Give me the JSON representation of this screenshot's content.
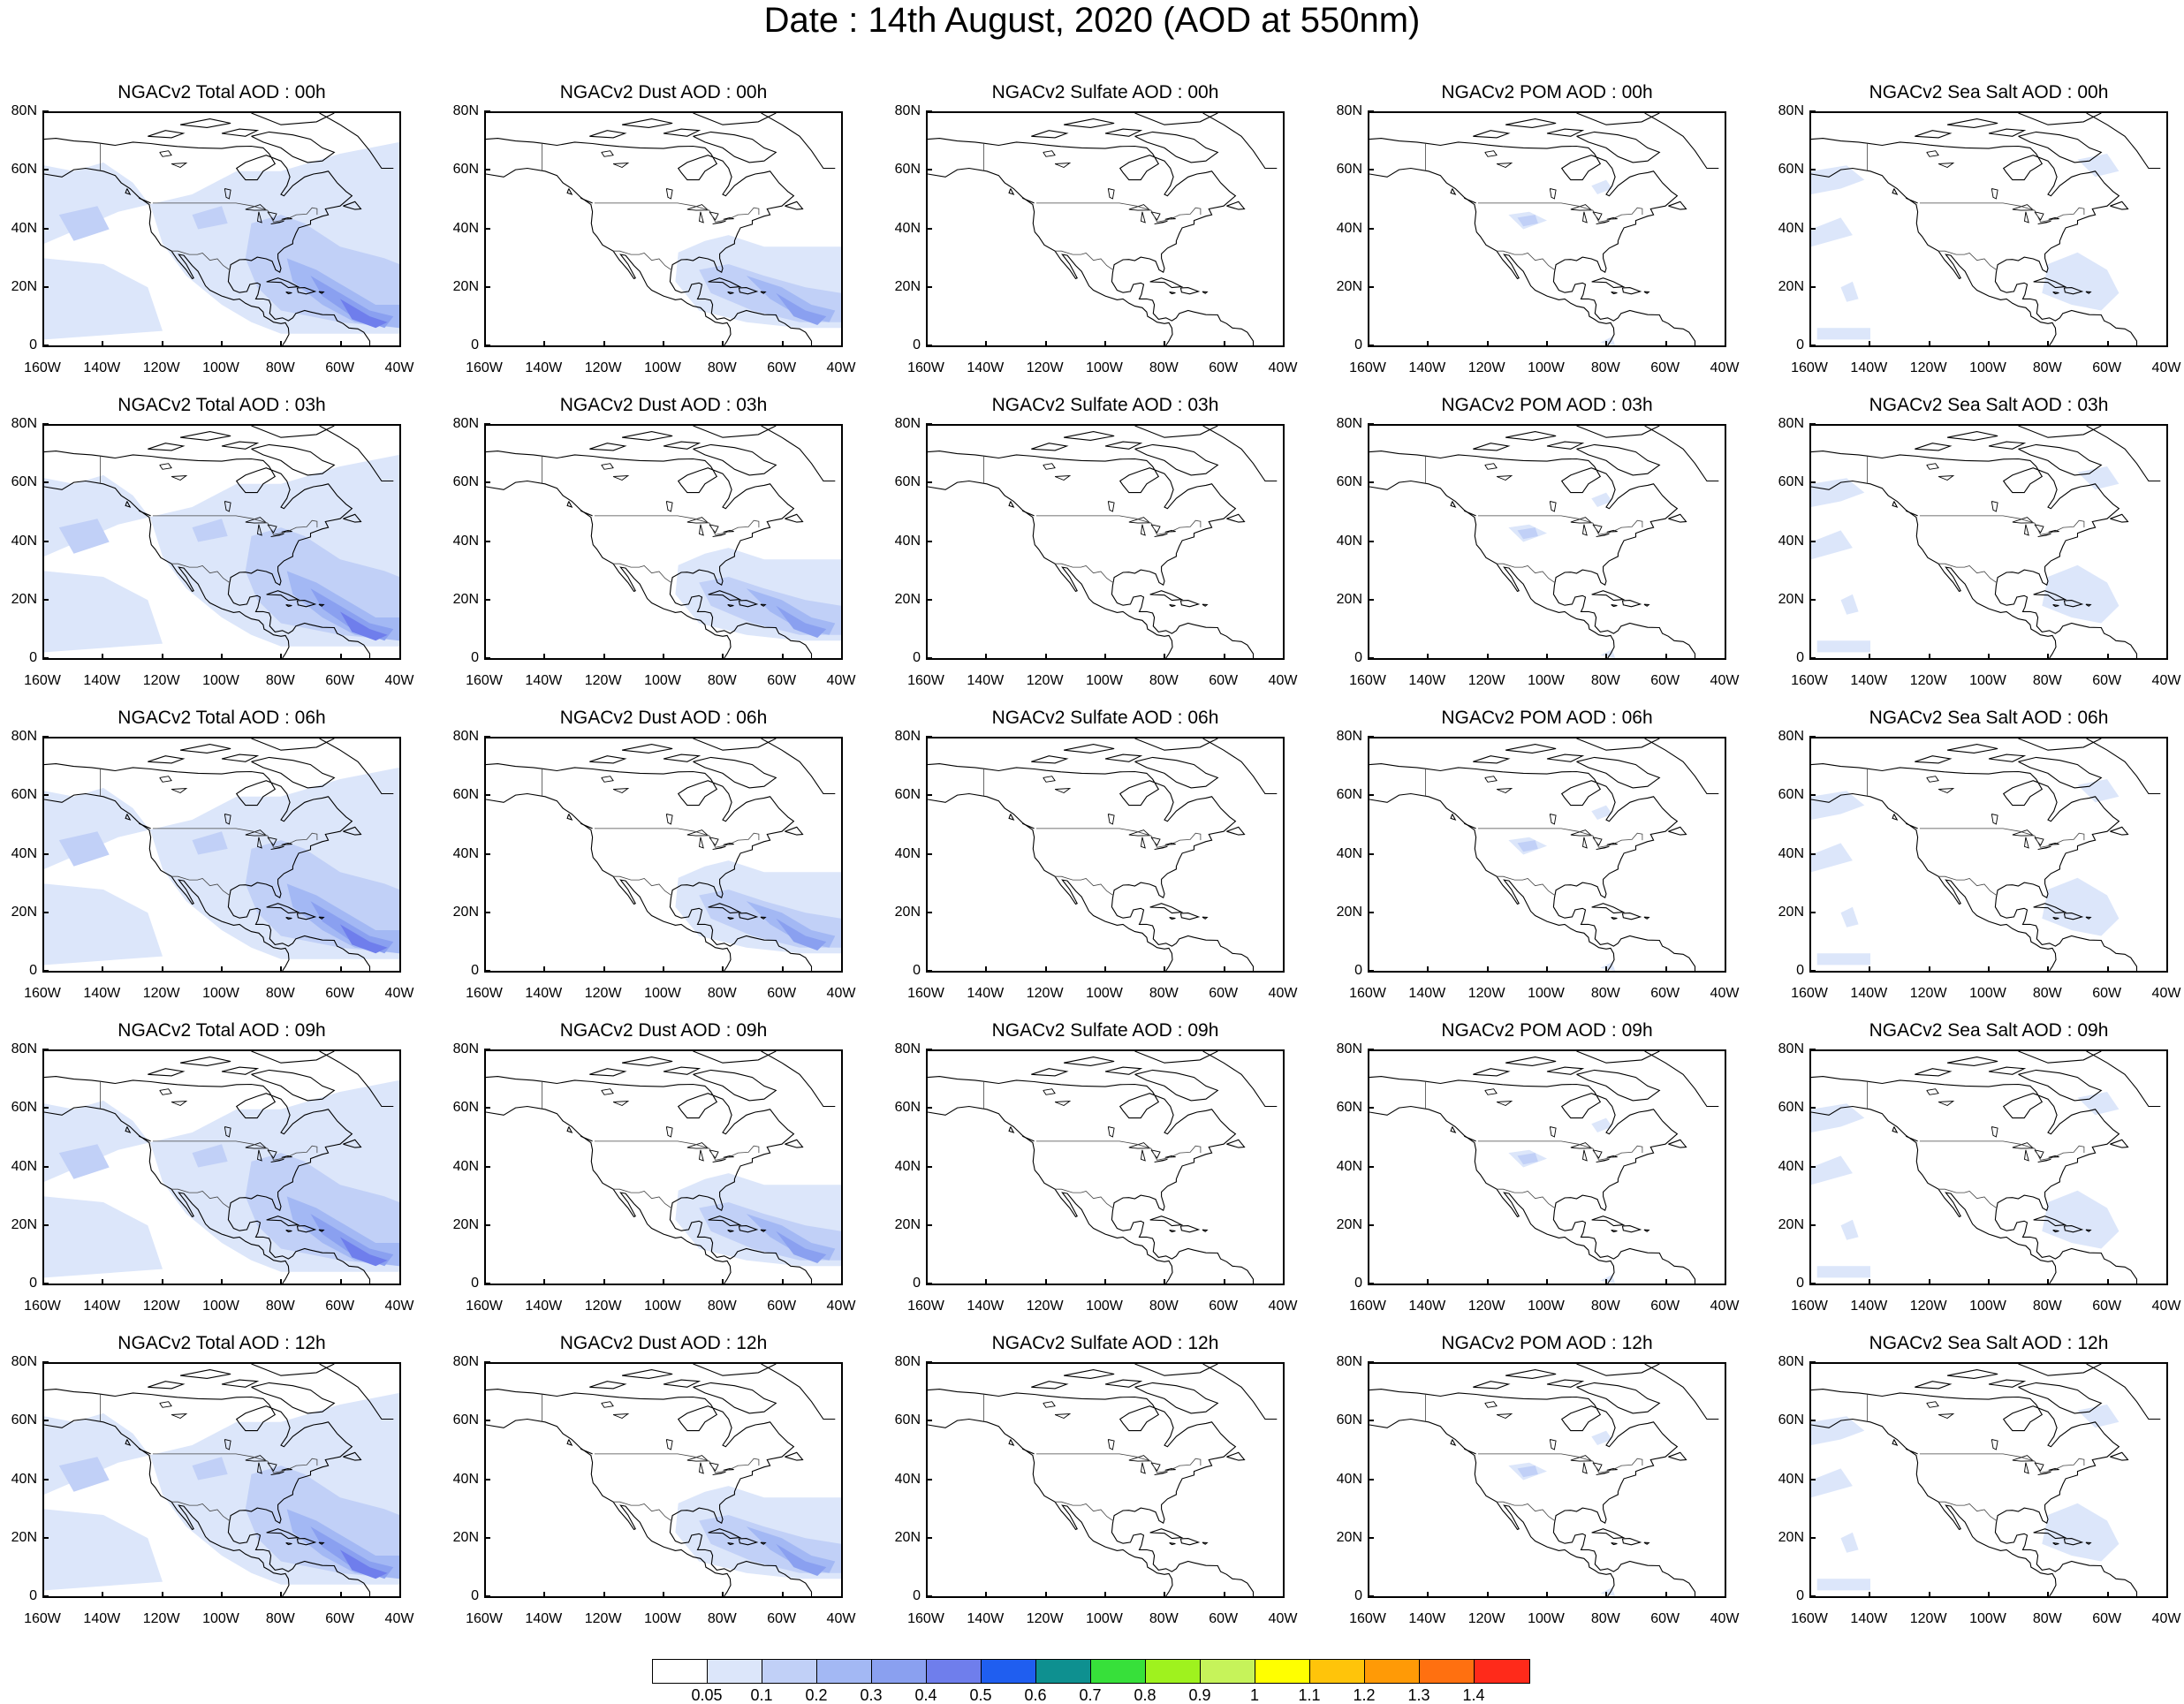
{
  "title": "Date : 14th August, 2020 (AOD at 550nm)",
  "lat_ticks": [
    "80N",
    "60N",
    "40N",
    "20N",
    "0"
  ],
  "lon_ticks": [
    "160W",
    "140W",
    "120W",
    "100W",
    "80W",
    "60W",
    "40W"
  ],
  "panels": [
    {
      "title": "NGACv2 Total AOD : 00h",
      "species": "total",
      "hour": "00"
    },
    {
      "title": "NGACv2 Dust AOD : 00h",
      "species": "dust",
      "hour": "00"
    },
    {
      "title": "NGACv2 Sulfate AOD : 00h",
      "species": "sulfate",
      "hour": "00"
    },
    {
      "title": "NGACv2 POM AOD : 00h",
      "species": "pom",
      "hour": "00"
    },
    {
      "title": "NGACv2 Sea Salt AOD : 00h",
      "species": "seasalt",
      "hour": "00"
    },
    {
      "title": "NGACv2 Total AOD : 03h",
      "species": "total",
      "hour": "03"
    },
    {
      "title": "NGACv2 Dust AOD : 03h",
      "species": "dust",
      "hour": "03"
    },
    {
      "title": "NGACv2 Sulfate AOD : 03h",
      "species": "sulfate",
      "hour": "03"
    },
    {
      "title": "NGACv2 POM AOD : 03h",
      "species": "pom",
      "hour": "03"
    },
    {
      "title": "NGACv2 Sea Salt AOD : 03h",
      "species": "seasalt",
      "hour": "03"
    },
    {
      "title": "NGACv2 Total AOD : 06h",
      "species": "total",
      "hour": "06"
    },
    {
      "title": "NGACv2 Dust AOD : 06h",
      "species": "dust",
      "hour": "06"
    },
    {
      "title": "NGACv2 Sulfate AOD : 06h",
      "species": "sulfate",
      "hour": "06"
    },
    {
      "title": "NGACv2 POM AOD : 06h",
      "species": "pom",
      "hour": "06"
    },
    {
      "title": "NGACv2 Sea Salt AOD : 06h",
      "species": "seasalt",
      "hour": "06"
    },
    {
      "title": "NGACv2 Total AOD : 09h",
      "species": "total",
      "hour": "09"
    },
    {
      "title": "NGACv2 Dust AOD : 09h",
      "species": "dust",
      "hour": "09"
    },
    {
      "title": "NGACv2 Sulfate AOD : 09h",
      "species": "sulfate",
      "hour": "09"
    },
    {
      "title": "NGACv2 POM AOD : 09h",
      "species": "pom",
      "hour": "09"
    },
    {
      "title": "NGACv2 Sea Salt  AOD : 09h",
      "species": "seasalt",
      "hour": "09"
    },
    {
      "title": "NGACv2 Total AOD  : 12h",
      "species": "total",
      "hour": "12"
    },
    {
      "title": "NGACv2 Dust AOD : 12h",
      "species": "dust",
      "hour": "12"
    },
    {
      "title": "NGACv2 Sulfate AOD : 12h",
      "species": "sulfate",
      "hour": "12"
    },
    {
      "title": "NGACv2 POM  AOD : 12h",
      "species": "pom",
      "hour": "12"
    },
    {
      "title": "NGACv2 Sea Salt  AOD : 12h",
      "species": "seasalt",
      "hour": "12"
    }
  ],
  "colorbar": {
    "colors": [
      "#ffffff",
      "#dce6fa",
      "#c1d0f7",
      "#a3b8f4",
      "#8aa0f0",
      "#6f7eec",
      "#1f5ef0",
      "#0e9090",
      "#37e03a",
      "#9ff21e",
      "#c6f35a",
      "#ffff00",
      "#ffc40a",
      "#ff9a06",
      "#ff7010",
      "#ff2a1a"
    ],
    "labels": [
      "0.05",
      "0.1",
      "0.2",
      "0.3",
      "0.4",
      "0.5",
      "0.6",
      "0.7",
      "0.8",
      "0.9",
      "1",
      "1.1",
      "1.2",
      "1.3",
      "1.4"
    ]
  }
}
